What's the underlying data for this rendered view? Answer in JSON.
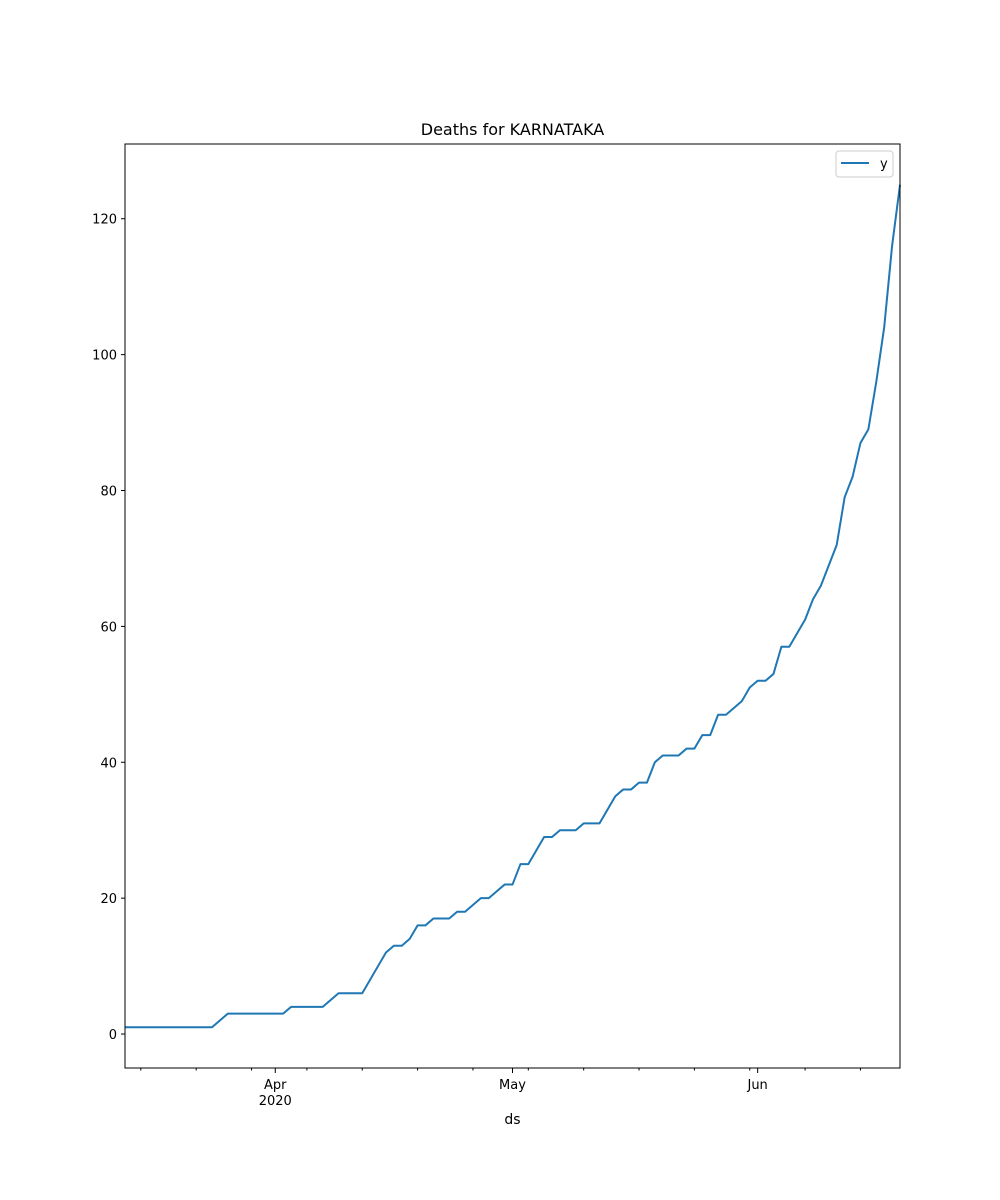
{
  "chart_data": {
    "type": "line",
    "title": "Deaths for KARNATAKA",
    "xlabel": "ds",
    "ylabel": "",
    "x_range": [
      "2020-03-13",
      "2020-06-19"
    ],
    "ylim": [
      -5,
      131
    ],
    "y_ticks": [
      0,
      20,
      40,
      60,
      80,
      100,
      120
    ],
    "x_major_ticks": [
      {
        "date": "2020-04-01",
        "label": "Apr",
        "sublabel": "2020"
      },
      {
        "date": "2020-05-01",
        "label": "May",
        "sublabel": ""
      },
      {
        "date": "2020-06-01",
        "label": "Jun",
        "sublabel": ""
      }
    ],
    "x_minor_ticks": [
      "2020-03-15",
      "2020-03-22",
      "2020-03-29",
      "2020-04-05",
      "2020-04-12",
      "2020-04-19",
      "2020-04-26",
      "2020-05-03",
      "2020-05-10",
      "2020-05-17",
      "2020-05-24",
      "2020-05-31",
      "2020-06-07",
      "2020-06-14"
    ],
    "grid": false,
    "legend": {
      "position": "top-right",
      "entries": [
        "y"
      ]
    },
    "series": [
      {
        "name": "y",
        "color": "#1f77b4",
        "points": [
          [
            "2020-03-13",
            1
          ],
          [
            "2020-03-24",
            1
          ],
          [
            "2020-03-26",
            3
          ],
          [
            "2020-04-02",
            3
          ],
          [
            "2020-04-03",
            4
          ],
          [
            "2020-04-07",
            4
          ],
          [
            "2020-04-09",
            6
          ],
          [
            "2020-04-12",
            6
          ],
          [
            "2020-04-15",
            12
          ],
          [
            "2020-04-16",
            13
          ],
          [
            "2020-04-17",
            13
          ],
          [
            "2020-04-18",
            14
          ],
          [
            "2020-04-19",
            16
          ],
          [
            "2020-04-20",
            16
          ],
          [
            "2020-04-21",
            17
          ],
          [
            "2020-04-23",
            17
          ],
          [
            "2020-04-24",
            18
          ],
          [
            "2020-04-25",
            18
          ],
          [
            "2020-04-27",
            20
          ],
          [
            "2020-04-28",
            20
          ],
          [
            "2020-04-30",
            22
          ],
          [
            "2020-05-01",
            22
          ],
          [
            "2020-05-02",
            25
          ],
          [
            "2020-05-03",
            25
          ],
          [
            "2020-05-05",
            29
          ],
          [
            "2020-05-06",
            29
          ],
          [
            "2020-05-07",
            30
          ],
          [
            "2020-05-09",
            30
          ],
          [
            "2020-05-10",
            31
          ],
          [
            "2020-05-12",
            31
          ],
          [
            "2020-05-14",
            35
          ],
          [
            "2020-05-15",
            36
          ],
          [
            "2020-05-16",
            36
          ],
          [
            "2020-05-17",
            37
          ],
          [
            "2020-05-18",
            37
          ],
          [
            "2020-05-19",
            40
          ],
          [
            "2020-05-20",
            41
          ],
          [
            "2020-05-22",
            41
          ],
          [
            "2020-05-23",
            42
          ],
          [
            "2020-05-24",
            42
          ],
          [
            "2020-05-25",
            44
          ],
          [
            "2020-05-26",
            44
          ],
          [
            "2020-05-27",
            47
          ],
          [
            "2020-05-28",
            47
          ],
          [
            "2020-05-30",
            49
          ],
          [
            "2020-05-31",
            51
          ],
          [
            "2020-06-01",
            52
          ],
          [
            "2020-06-02",
            52
          ],
          [
            "2020-06-03",
            53
          ],
          [
            "2020-06-04",
            57
          ],
          [
            "2020-06-05",
            57
          ],
          [
            "2020-06-07",
            61
          ],
          [
            "2020-06-08",
            64
          ],
          [
            "2020-06-09",
            66
          ],
          [
            "2020-06-11",
            72
          ],
          [
            "2020-06-12",
            79
          ],
          [
            "2020-06-13",
            82
          ],
          [
            "2020-06-14",
            87
          ],
          [
            "2020-06-15",
            89
          ],
          [
            "2020-06-16",
            96
          ],
          [
            "2020-06-17",
            104
          ],
          [
            "2020-06-18",
            116
          ],
          [
            "2020-06-19",
            125
          ]
        ]
      }
    ]
  }
}
